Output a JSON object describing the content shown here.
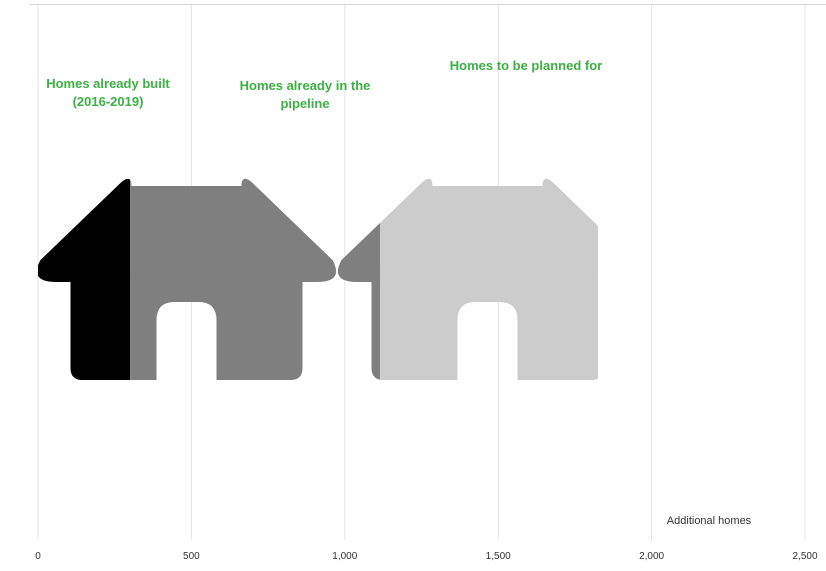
{
  "chart_data": {
    "type": "bar",
    "orientation": "horizontal-stacked",
    "title": "",
    "xlabel": "Additional homes",
    "ylabel": "",
    "xlim": [
      0,
      2500
    ],
    "xticks": [
      0,
      500,
      1000,
      1500,
      2000,
      2500
    ],
    "xtick_labels": [
      "0",
      "500",
      "1,000",
      "1,500",
      "2,000",
      "2,500"
    ],
    "grid": true,
    "label_color": "#3cb043",
    "segments": [
      {
        "label_lines": [
          "Homes already built",
          "(2016-2019)"
        ],
        "value": 300,
        "color": "#000000"
      },
      {
        "label_lines": [
          "Homes already in the",
          "pipeline"
        ],
        "value": 815,
        "color": "#7f7f7f"
      },
      {
        "label_lines": [
          "Homes to be planned for"
        ],
        "value": 710,
        "color": "#cccccc"
      }
    ]
  }
}
